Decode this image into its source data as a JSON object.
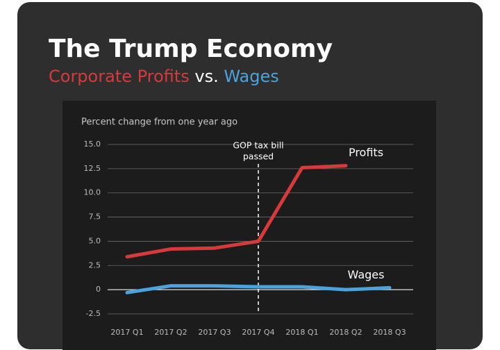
{
  "chart_data": {
    "type": "line",
    "title": "The Trump Economy",
    "subtitle": [
      "Corporate Profits",
      "vs.",
      "Wages"
    ],
    "ylabel": "Percent change from one year ago",
    "categories": [
      "2017 Q1",
      "2017 Q2",
      "2017 Q3",
      "2017 Q4",
      "2018 Q1",
      "2018 Q2",
      "2018 Q3"
    ],
    "series": [
      {
        "name": "Profits",
        "color": "#d63a3a",
        "values": [
          3.4,
          4.2,
          4.3,
          5.0,
          12.6,
          12.8,
          null
        ]
      },
      {
        "name": "Wages",
        "color": "#4aa3dc",
        "values": [
          -0.3,
          0.4,
          0.4,
          0.3,
          0.3,
          0.0,
          0.2
        ]
      }
    ],
    "annotation": {
      "text": [
        "GOP tax bill",
        "passed"
      ],
      "x": "2017 Q4"
    },
    "ylim": [
      -2.5,
      15
    ],
    "yticks": [
      -2.5,
      0,
      2.5,
      {
        "value": 5,
        "label": "5.0"
      },
      7.5,
      {
        "value": 10,
        "label": "10.0"
      },
      12.5,
      {
        "value": 15,
        "label": "15.0"
      }
    ],
    "grid": true
  }
}
